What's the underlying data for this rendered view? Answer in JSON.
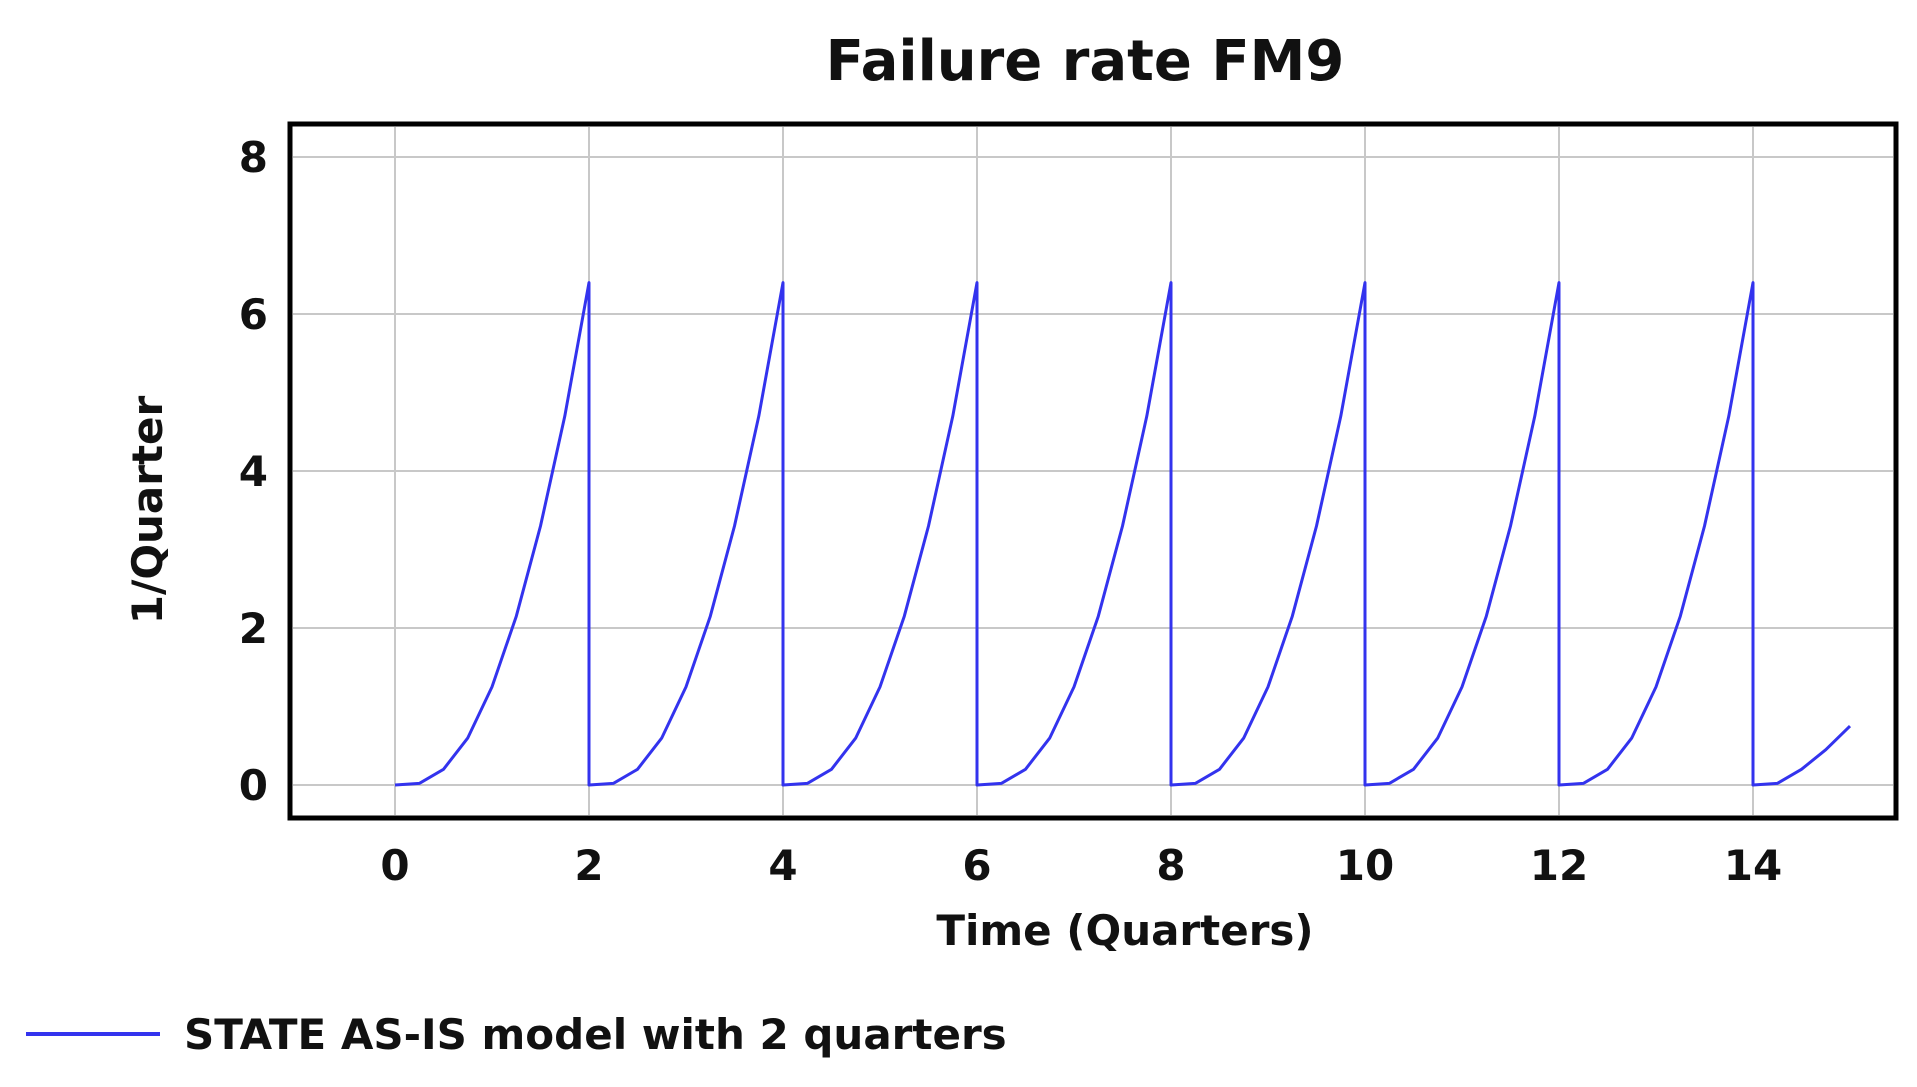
{
  "chart_data": {
    "type": "line",
    "title": "Failure rate FM9",
    "xlabel": "Time (Quarters)",
    "ylabel": "1/Quarter",
    "xlim": [
      0,
      15
    ],
    "ylim": [
      0,
      8
    ],
    "x_ticks": [
      "0",
      "2",
      "4",
      "6",
      "8",
      "10",
      "12",
      "14"
    ],
    "y_ticks": [
      "0",
      "2",
      "4",
      "6",
      "8"
    ],
    "grid": true,
    "legend_position": "bottom-left",
    "series": [
      {
        "name": "STATE AS-IS model with 2 quarters",
        "color": "#3333ee",
        "x": [
          0,
          0.25,
          0.5,
          0.75,
          1.0,
          1.25,
          1.5,
          1.75,
          2.0,
          2.0,
          2.25,
          2.5,
          2.75,
          3.0,
          3.25,
          3.5,
          3.75,
          4.0,
          4.0,
          4.25,
          4.5,
          4.75,
          5.0,
          5.25,
          5.5,
          5.75,
          6.0,
          6.0,
          6.25,
          6.5,
          6.75,
          7.0,
          7.25,
          7.5,
          7.75,
          8.0,
          8.0,
          8.25,
          8.5,
          8.75,
          9.0,
          9.25,
          9.5,
          9.75,
          10.0,
          10.0,
          10.25,
          10.5,
          10.75,
          11.0,
          11.25,
          11.5,
          11.75,
          12.0,
          12.0,
          12.25,
          12.5,
          12.75,
          13.0,
          13.25,
          13.5,
          13.75,
          14.0,
          14.0,
          14.25,
          14.5,
          14.75,
          15.0
        ],
        "y": [
          0,
          0.02,
          0.2,
          0.6,
          1.25,
          2.15,
          3.3,
          4.7,
          6.4,
          0,
          0.02,
          0.2,
          0.6,
          1.25,
          2.15,
          3.3,
          4.7,
          6.4,
          0,
          0.02,
          0.2,
          0.6,
          1.25,
          2.15,
          3.3,
          4.7,
          6.4,
          0,
          0.02,
          0.2,
          0.6,
          1.25,
          2.15,
          3.3,
          4.7,
          6.4,
          0,
          0.02,
          0.2,
          0.6,
          1.25,
          2.15,
          3.3,
          4.7,
          6.4,
          0,
          0.02,
          0.2,
          0.6,
          1.25,
          2.15,
          3.3,
          4.7,
          6.4,
          0,
          0.02,
          0.2,
          0.6,
          1.25,
          2.15,
          3.3,
          4.7,
          6.4,
          0,
          0.02,
          0.2,
          0.45,
          0.75
        ]
      }
    ]
  }
}
